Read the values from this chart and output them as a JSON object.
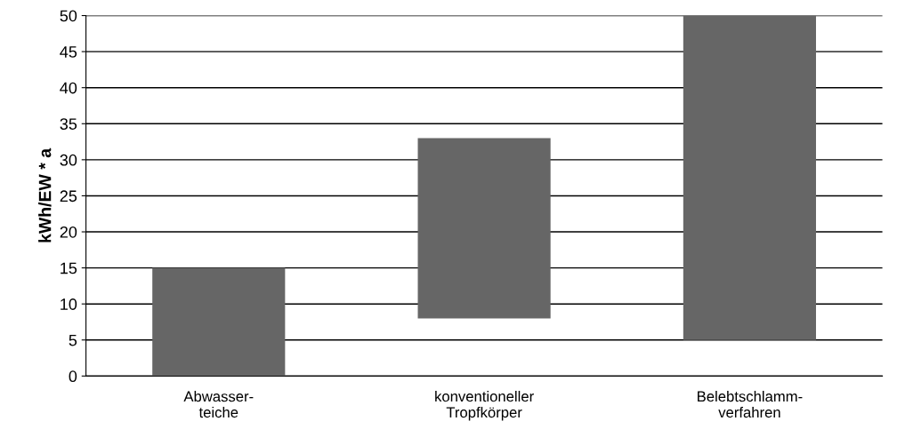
{
  "chart_data": {
    "type": "bar",
    "ylabel": "kWh/EW * a",
    "categories": [
      "Abwasser-\nteiche",
      "konventioneller\nTropfkörper",
      "Belebtschlamm-\nverfahren"
    ],
    "base": [
      0,
      8,
      5
    ],
    "values": [
      15,
      25,
      45
    ],
    "color": "#666666",
    "ylim": [
      0,
      50
    ],
    "yticks": [
      0,
      5,
      10,
      15,
      20,
      25,
      30,
      35,
      40,
      45,
      50
    ],
    "grid": "y"
  }
}
